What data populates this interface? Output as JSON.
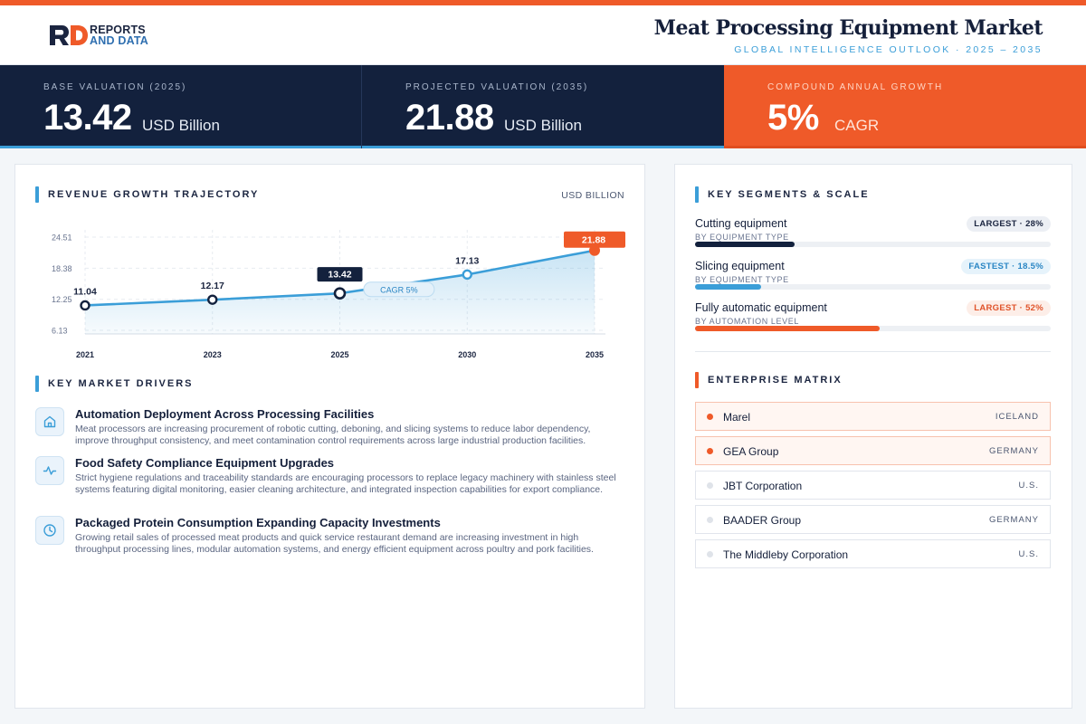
{
  "header": {
    "logo_line1": "REPORTS",
    "logo_line2": "AND DATA",
    "title": "Meat Processing Equipment Market",
    "subtitle": "GLOBAL INTELLIGENCE OUTLOOK  ·  2025 – 2035"
  },
  "kpis": [
    {
      "label": "BASE VALUATION (2025)",
      "value": "13.42",
      "unit": "USD Billion"
    },
    {
      "label": "PROJECTED VALUATION (2035)",
      "value": "21.88",
      "unit": "USD Billion"
    },
    {
      "label": "COMPOUND ANNUAL GROWTH",
      "value": "5%",
      "unit": "CAGR"
    }
  ],
  "chart_section": {
    "title": "REVENUE GROWTH TRAJECTORY",
    "unit": "USD BILLION"
  },
  "chart_data": {
    "type": "area",
    "x": [
      "2021",
      "2023",
      "2025",
      "2030",
      "2035"
    ],
    "values": [
      11.04,
      12.17,
      13.42,
      17.13,
      21.88
    ],
    "y_ticks": [
      "24.51",
      "18.38",
      "12.25",
      "6.13"
    ],
    "ylim": [
      6.13,
      24.51
    ],
    "grid": true,
    "annotation": "CAGR 5%",
    "highlight_colors": {
      "2025": "#13213d",
      "2035": "#ef5a29"
    },
    "line_color": "#3b9ed8"
  },
  "drivers_section": {
    "title": "KEY MARKET DRIVERS"
  },
  "drivers": [
    {
      "icon": "factory-icon",
      "title": "Automation Deployment Across Processing Facilities",
      "text": "Meat processors are increasing procurement of robotic cutting, deboning, and slicing systems to reduce labor dependency, improve throughput consistency, and meet contamination control requirements across large industrial production facilities."
    },
    {
      "icon": "pulse-icon",
      "title": "Food Safety Compliance Equipment Upgrades",
      "text": "Strict hygiene regulations and traceability standards are encouraging processors to replace legacy machinery with stainless steel systems featuring digital monitoring, easier cleaning architecture, and integrated inspection capabilities for export compliance."
    },
    {
      "icon": "clock-icon",
      "title": "Packaged Protein Consumption Expanding Capacity Investments",
      "text": "Growing retail sales of processed meat products and quick service restaurant demand are increasing investment in high throughput processing lines, modular automation systems, and energy efficient equipment across poultry and pork facilities."
    }
  ],
  "segments_section": {
    "title": "KEY SEGMENTS & SCALE"
  },
  "segments": [
    {
      "name": "Cutting equipment",
      "sub": "BY EQUIPMENT TYPE",
      "badge": "LARGEST · 28%",
      "share": 0.28,
      "bar_color": "#13213d",
      "badge_bg": "#eceff4",
      "badge_color": "#1b2540"
    },
    {
      "name": "Slicing equipment",
      "sub": "BY EQUIPMENT TYPE",
      "badge": "FASTEST · 18.5%",
      "share": 0.185,
      "bar_color": "#3b9ed8",
      "badge_bg": "#e6f3fb",
      "badge_color": "#2a86c4"
    },
    {
      "name": "Fully automatic equipment",
      "sub": "BY AUTOMATION LEVEL",
      "badge": "LARGEST · 52%",
      "share": 0.52,
      "bar_color": "#ef5a29",
      "badge_bg": "#fdeee8",
      "badge_color": "#e0532a"
    }
  ],
  "enterprise_section": {
    "title": "ENTERPRISE MATRIX"
  },
  "enterprises": [
    {
      "name": "Marel",
      "country": "ICELAND"
    },
    {
      "name": "GEA Group",
      "country": "GERMANY"
    },
    {
      "name": "JBT Corporation",
      "country": "U.S."
    },
    {
      "name": "BAADER Group",
      "country": "GERMANY"
    },
    {
      "name": "The Middleby Corporation",
      "country": "U.S."
    }
  ]
}
